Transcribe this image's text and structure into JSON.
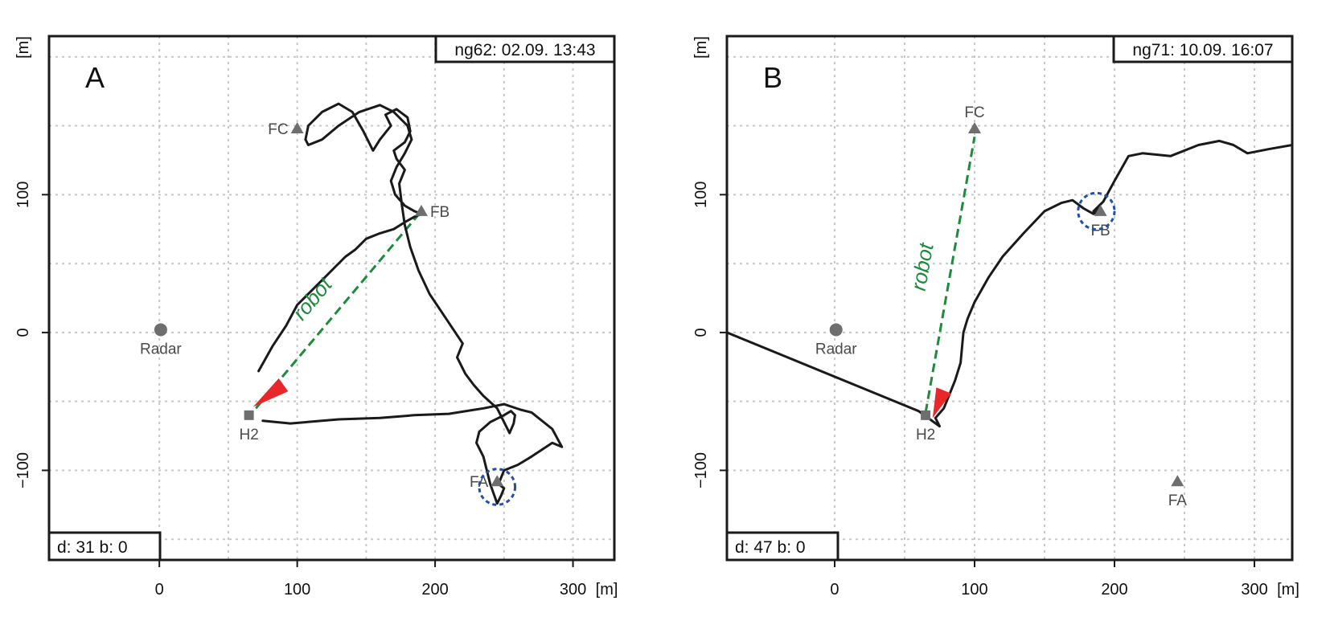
{
  "colors": {
    "frame": "#1a1a1a",
    "grid": "#c8c8c8",
    "track": "#1a1a1a",
    "landmark": "#6e6e6e",
    "robot_line": "#1e8a3c",
    "robot_label": "#1e8a3c",
    "heading_marker": "#e8272a",
    "target_circle": "#2350a0"
  },
  "chart_data": [
    {
      "type": "scatter",
      "panel_letter": "A",
      "header_label": "ng62: 02.09. 13:43",
      "footer_label": "d: 31 b: 0",
      "y_unit_label": "[m]",
      "x_unit_label": "[m]",
      "xlim": [
        -80,
        330
      ],
      "ylim": [
        -165,
        215
      ],
      "x_ticks": [
        0,
        100,
        200,
        300
      ],
      "x_tick_labels": [
        "0",
        "100",
        "200",
        "300"
      ],
      "y_ticks": [
        -100,
        0,
        100
      ],
      "y_tick_labels": [
        "−100",
        "0",
        "100"
      ],
      "grid": true,
      "grid_x": [
        0,
        50,
        100,
        150,
        200,
        250,
        300
      ],
      "grid_y": [
        -150,
        -100,
        -50,
        0,
        50,
        100,
        150,
        200
      ],
      "landmarks": [
        {
          "label": "Radar",
          "shape": "circle",
          "x": 1,
          "y": 2,
          "label_side": "below"
        },
        {
          "label": "H2",
          "shape": "square",
          "x": 65,
          "y": -60,
          "label_side": "below"
        },
        {
          "label": "FC",
          "shape": "triangle",
          "x": 100,
          "y": 148,
          "label_side": "left"
        },
        {
          "label": "FB",
          "shape": "triangle",
          "x": 190,
          "y": 88,
          "label_side": "right"
        },
        {
          "label": "FA",
          "shape": "triangle",
          "x": 245,
          "y": -108,
          "label_side": "left"
        }
      ],
      "robot_label": "robot",
      "robot_line": {
        "x1": 70,
        "y1": -55,
        "x2": 190,
        "y2": 88
      },
      "heading_marker": {
        "x": 68,
        "y": -54,
        "toward_x": 90,
        "toward_y": -38
      },
      "target_circle": {
        "x": 245,
        "y": -112,
        "r": 13
      },
      "track": {
        "x": [
          75,
          95,
          130,
          160,
          185,
          210,
          235,
          250,
          262,
          270,
          285,
          292,
          285,
          270,
          260,
          250,
          246,
          250,
          248,
          245,
          240,
          235,
          230,
          232,
          240,
          250,
          255,
          258,
          257,
          254,
          245,
          235,
          228,
          222,
          216,
          220,
          208,
          196,
          188,
          182,
          178,
          176,
          174,
          178,
          172,
          170,
          178,
          182,
          180,
          172,
          164,
          168,
          160,
          155,
          148,
          140,
          130,
          118,
          108,
          106,
          108,
          118,
          130,
          145,
          160,
          170,
          180,
          183,
          178,
          172,
          168,
          171,
          178,
          185,
          190,
          185,
          178,
          170,
          160,
          150,
          142,
          135,
          128,
          120,
          110,
          100,
          92,
          82,
          72
        ],
        "y": [
          -64,
          -66,
          -63,
          -62,
          -60,
          -59,
          -55,
          -52,
          -56,
          -58,
          -70,
          -83,
          -80,
          -90,
          -96,
          -100,
          -110,
          -113,
          -118,
          -124,
          -110,
          -90,
          -80,
          -72,
          -65,
          -60,
          -57,
          -60,
          -66,
          -73,
          -55,
          -46,
          -38,
          -30,
          -18,
          -8,
          10,
          28,
          45,
          62,
          78,
          92,
          108,
          118,
          126,
          132,
          138,
          146,
          156,
          162,
          158,
          150,
          140,
          132,
          146,
          160,
          166,
          160,
          150,
          140,
          136,
          140,
          150,
          160,
          165,
          160,
          150,
          140,
          130,
          120,
          110,
          100,
          92,
          88,
          86,
          84,
          80,
          75,
          72,
          68,
          60,
          55,
          48,
          40,
          30,
          20,
          5,
          -10,
          -28
        ]
      }
    },
    {
      "type": "scatter",
      "panel_letter": "B",
      "header_label": "ng71: 10.09. 16:07",
      "footer_label": "d: 47 b: 0",
      "y_unit_label": "[m]",
      "x_unit_label": "[m]",
      "xlim": [
        -77,
        327
      ],
      "ylim": [
        -165,
        215
      ],
      "x_ticks": [
        0,
        100,
        200,
        300
      ],
      "x_tick_labels": [
        "0",
        "100",
        "200",
        "300"
      ],
      "y_ticks": [
        -100,
        0,
        100
      ],
      "y_tick_labels": [
        "−100",
        "0",
        "100"
      ],
      "grid": true,
      "grid_x": [
        0,
        50,
        100,
        150,
        200,
        250,
        300
      ],
      "grid_y": [
        -150,
        -100,
        -50,
        0,
        50,
        100,
        150,
        200
      ],
      "landmarks": [
        {
          "label": "Radar",
          "shape": "circle",
          "x": 1,
          "y": 2,
          "label_side": "below"
        },
        {
          "label": "H2",
          "shape": "square",
          "x": 65,
          "y": -60,
          "label_side": "below"
        },
        {
          "label": "FC",
          "shape": "triangle",
          "x": 100,
          "y": 148,
          "label_side": "above"
        },
        {
          "label": "FB",
          "shape": "triangle",
          "x": 190,
          "y": 88,
          "label_side": "below"
        },
        {
          "label": "FA",
          "shape": "triangle",
          "x": 245,
          "y": -108,
          "label_side": "below"
        }
      ],
      "robot_label": "robot",
      "robot_line": {
        "x1": 65,
        "y1": -58,
        "x2": 100,
        "y2": 142
      },
      "heading_marker": {
        "x": 70,
        "y": -62,
        "toward_x": 78,
        "toward_y": -42
      },
      "target_circle": {
        "x": 187,
        "y": 88,
        "r": 13
      },
      "track": {
        "x": [
          -77,
          60,
          75,
          72,
          78,
          82,
          86,
          90,
          92,
          95,
          100,
          110,
          120,
          135,
          150,
          162,
          170,
          178,
          185,
          190,
          185,
          192,
          200,
          210,
          220,
          240,
          260,
          275,
          285,
          295,
          310,
          327
        ],
        "y": [
          0,
          -57,
          -68,
          -62,
          -55,
          -45,
          -35,
          -22,
          0,
          10,
          22,
          40,
          55,
          72,
          88,
          94,
          96,
          90,
          86,
          90,
          88,
          95,
          110,
          128,
          130,
          128,
          136,
          139,
          136,
          130,
          133,
          136
        ]
      }
    }
  ]
}
